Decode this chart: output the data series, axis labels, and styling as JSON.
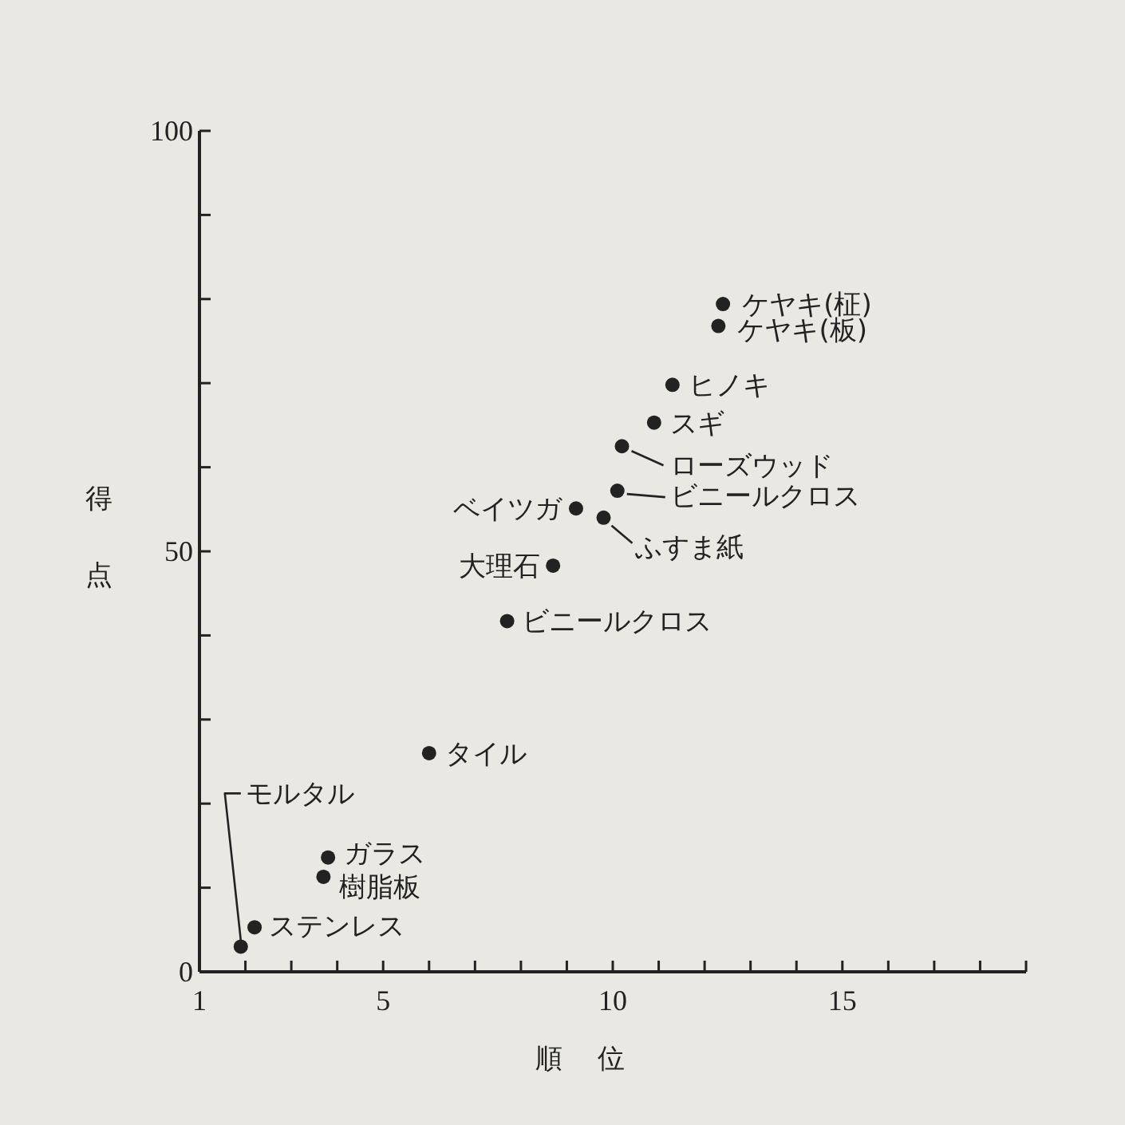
{
  "chart_data": {
    "type": "scatter",
    "xlabel": "順位",
    "ylabel": "得点",
    "color": "#222222",
    "marker": "circle",
    "grid": false,
    "x": [
      12.4,
      12.3,
      11.3,
      10.9,
      10.2,
      10.1,
      9.2,
      9.8,
      8.7,
      7.7,
      6.0,
      3.8,
      3.7,
      2.2,
      1.9
    ],
    "values": [
      79.4,
      76.8,
      69.8,
      65.3,
      62.5,
      57.2,
      55.1,
      54.0,
      48.3,
      41.7,
      26.0,
      13.6,
      11.3,
      5.3,
      3.0
    ],
    "xlim": [
      1,
      19
    ],
    "xticks": [
      1,
      {
        "value": 2,
        "label": null
      },
      {
        "value": 3,
        "label": null
      },
      {
        "value": 4,
        "label": null
      },
      5,
      {
        "value": 6,
        "label": null
      },
      {
        "value": 7,
        "label": null
      },
      {
        "value": 8,
        "label": null
      },
      {
        "value": 9,
        "label": null
      },
      10,
      {
        "value": 11,
        "label": null
      },
      {
        "value": 12,
        "label": null
      },
      {
        "value": 13,
        "label": null
      },
      {
        "value": 14,
        "label": null
      },
      15,
      {
        "value": 16,
        "label": null
      },
      {
        "value": 17,
        "label": null
      },
      {
        "value": 18,
        "label": null
      },
      {
        "value": 19,
        "label": null
      }
    ],
    "ylim": [
      0,
      100
    ],
    "yticks": [
      0,
      {
        "value": 10,
        "label": null
      },
      {
        "value": 20,
        "label": null
      },
      {
        "value": 30,
        "label": null
      },
      {
        "value": 40,
        "label": null
      },
      50,
      {
        "value": 60,
        "label": null
      },
      {
        "value": 70,
        "label": null
      },
      {
        "value": 80,
        "label": null
      },
      {
        "value": 90,
        "label": null
      },
      100
    ],
    "annotations": [
      {
        "text": "ケヤキ(柾)",
        "x": 12.4,
        "y": 79.4
      },
      {
        "text": "ケヤキ(板)",
        "x": 12.3,
        "y": 76.8
      },
      {
        "text": "ヒノキ",
        "x": 11.3,
        "y": 69.8
      },
      {
        "text": "スギ",
        "x": 10.9,
        "y": 65.3
      },
      {
        "text": "ローズウッド",
        "x": 10.2,
        "y": 62.5
      },
      {
        "text": "ビニールクロス",
        "x": 10.1,
        "y": 57.2
      },
      {
        "text": "ベイツガ",
        "x": 9.2,
        "y": 55.1
      },
      {
        "text": "ふすま紙",
        "x": 9.8,
        "y": 54.0
      },
      {
        "text": "大理石",
        "x": 8.7,
        "y": 48.3
      },
      {
        "text": "ビニールクロス",
        "x": 7.7,
        "y": 41.7
      },
      {
        "text": "タイル",
        "x": 6.0,
        "y": 26.0
      },
      {
        "text": "ガラス",
        "x": 3.8,
        "y": 13.6
      },
      {
        "text": "樹脂板",
        "x": 3.7,
        "y": 11.3
      },
      {
        "text": "ステンレス",
        "x": 2.2,
        "y": 5.3
      },
      {
        "text": "モルタル",
        "x": 1.9,
        "y": 3.0
      }
    ]
  }
}
